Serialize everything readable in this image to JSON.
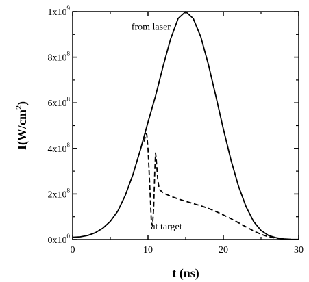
{
  "chart_data": {
    "type": "line",
    "xlabel": "t (ns)",
    "ylabel": "I(W/cm²)",
    "xlim": [
      0,
      30
    ],
    "ylim": [
      0,
      1000000000
    ],
    "grid": false,
    "x_ticks": [
      {
        "value": 0,
        "label": "0"
      },
      {
        "value": 10,
        "label": "10"
      },
      {
        "value": 20,
        "label": "20"
      },
      {
        "value": 30,
        "label": "30"
      }
    ],
    "y_ticks": [
      {
        "value": 0,
        "mantissa": "0x10",
        "exp": "0"
      },
      {
        "value": 200000000,
        "mantissa": "2x10",
        "exp": "8"
      },
      {
        "value": 400000000,
        "mantissa": "4x10",
        "exp": "8"
      },
      {
        "value": 600000000,
        "mantissa": "6x10",
        "exp": "8"
      },
      {
        "value": 800000000,
        "mantissa": "8x10",
        "exp": "8"
      },
      {
        "value": 1000000000,
        "mantissa": "1x10",
        "exp": "9"
      }
    ],
    "annotations": [
      {
        "text": "from laser",
        "x": 7.8,
        "y": 920000000
      },
      {
        "text": "at target",
        "x": 10.4,
        "y": 45000000
      }
    ],
    "series": [
      {
        "style": "solid",
        "x": [
          0,
          1,
          2,
          3,
          4,
          5,
          6,
          7,
          8,
          9,
          10,
          11,
          12,
          13,
          14,
          15,
          16,
          17,
          18,
          19,
          20,
          21,
          22,
          23,
          24,
          25,
          26,
          27,
          28,
          29,
          30
        ],
        "y": [
          10000000,
          12000000,
          18000000,
          30000000,
          50000000,
          80000000,
          125000000,
          195000000,
          285000000,
          395000000,
          515000000,
          630000000,
          760000000,
          880000000,
          970000000,
          1000000000,
          970000000,
          890000000,
          770000000,
          630000000,
          485000000,
          350000000,
          235000000,
          145000000,
          80000000,
          40000000,
          18000000,
          8000000,
          3000000,
          1000000,
          500000
        ]
      },
      {
        "style": "dashed",
        "x": [
          9.5,
          9.7,
          9.85,
          10.0,
          10.15,
          10.3,
          10.45,
          10.6,
          10.75,
          10.9,
          11.0,
          11.1,
          11.3,
          11.5,
          12.0,
          13.0,
          14.0,
          15.0,
          16.0,
          17.0,
          18.0,
          19.0,
          20.0,
          21.0,
          22.0,
          23.0,
          24.0,
          25.0,
          26.0,
          27.0,
          28.0
        ],
        "y": [
          430000000,
          465000000,
          460000000,
          400000000,
          300000000,
          190000000,
          80000000,
          60000000,
          140000000,
          300000000,
          380000000,
          350000000,
          260000000,
          220000000,
          205000000,
          190000000,
          178000000,
          168000000,
          158000000,
          148000000,
          137000000,
          123000000,
          108000000,
          92000000,
          74000000,
          56000000,
          38000000,
          23000000,
          12000000,
          6000000,
          3000000
        ]
      }
    ]
  }
}
